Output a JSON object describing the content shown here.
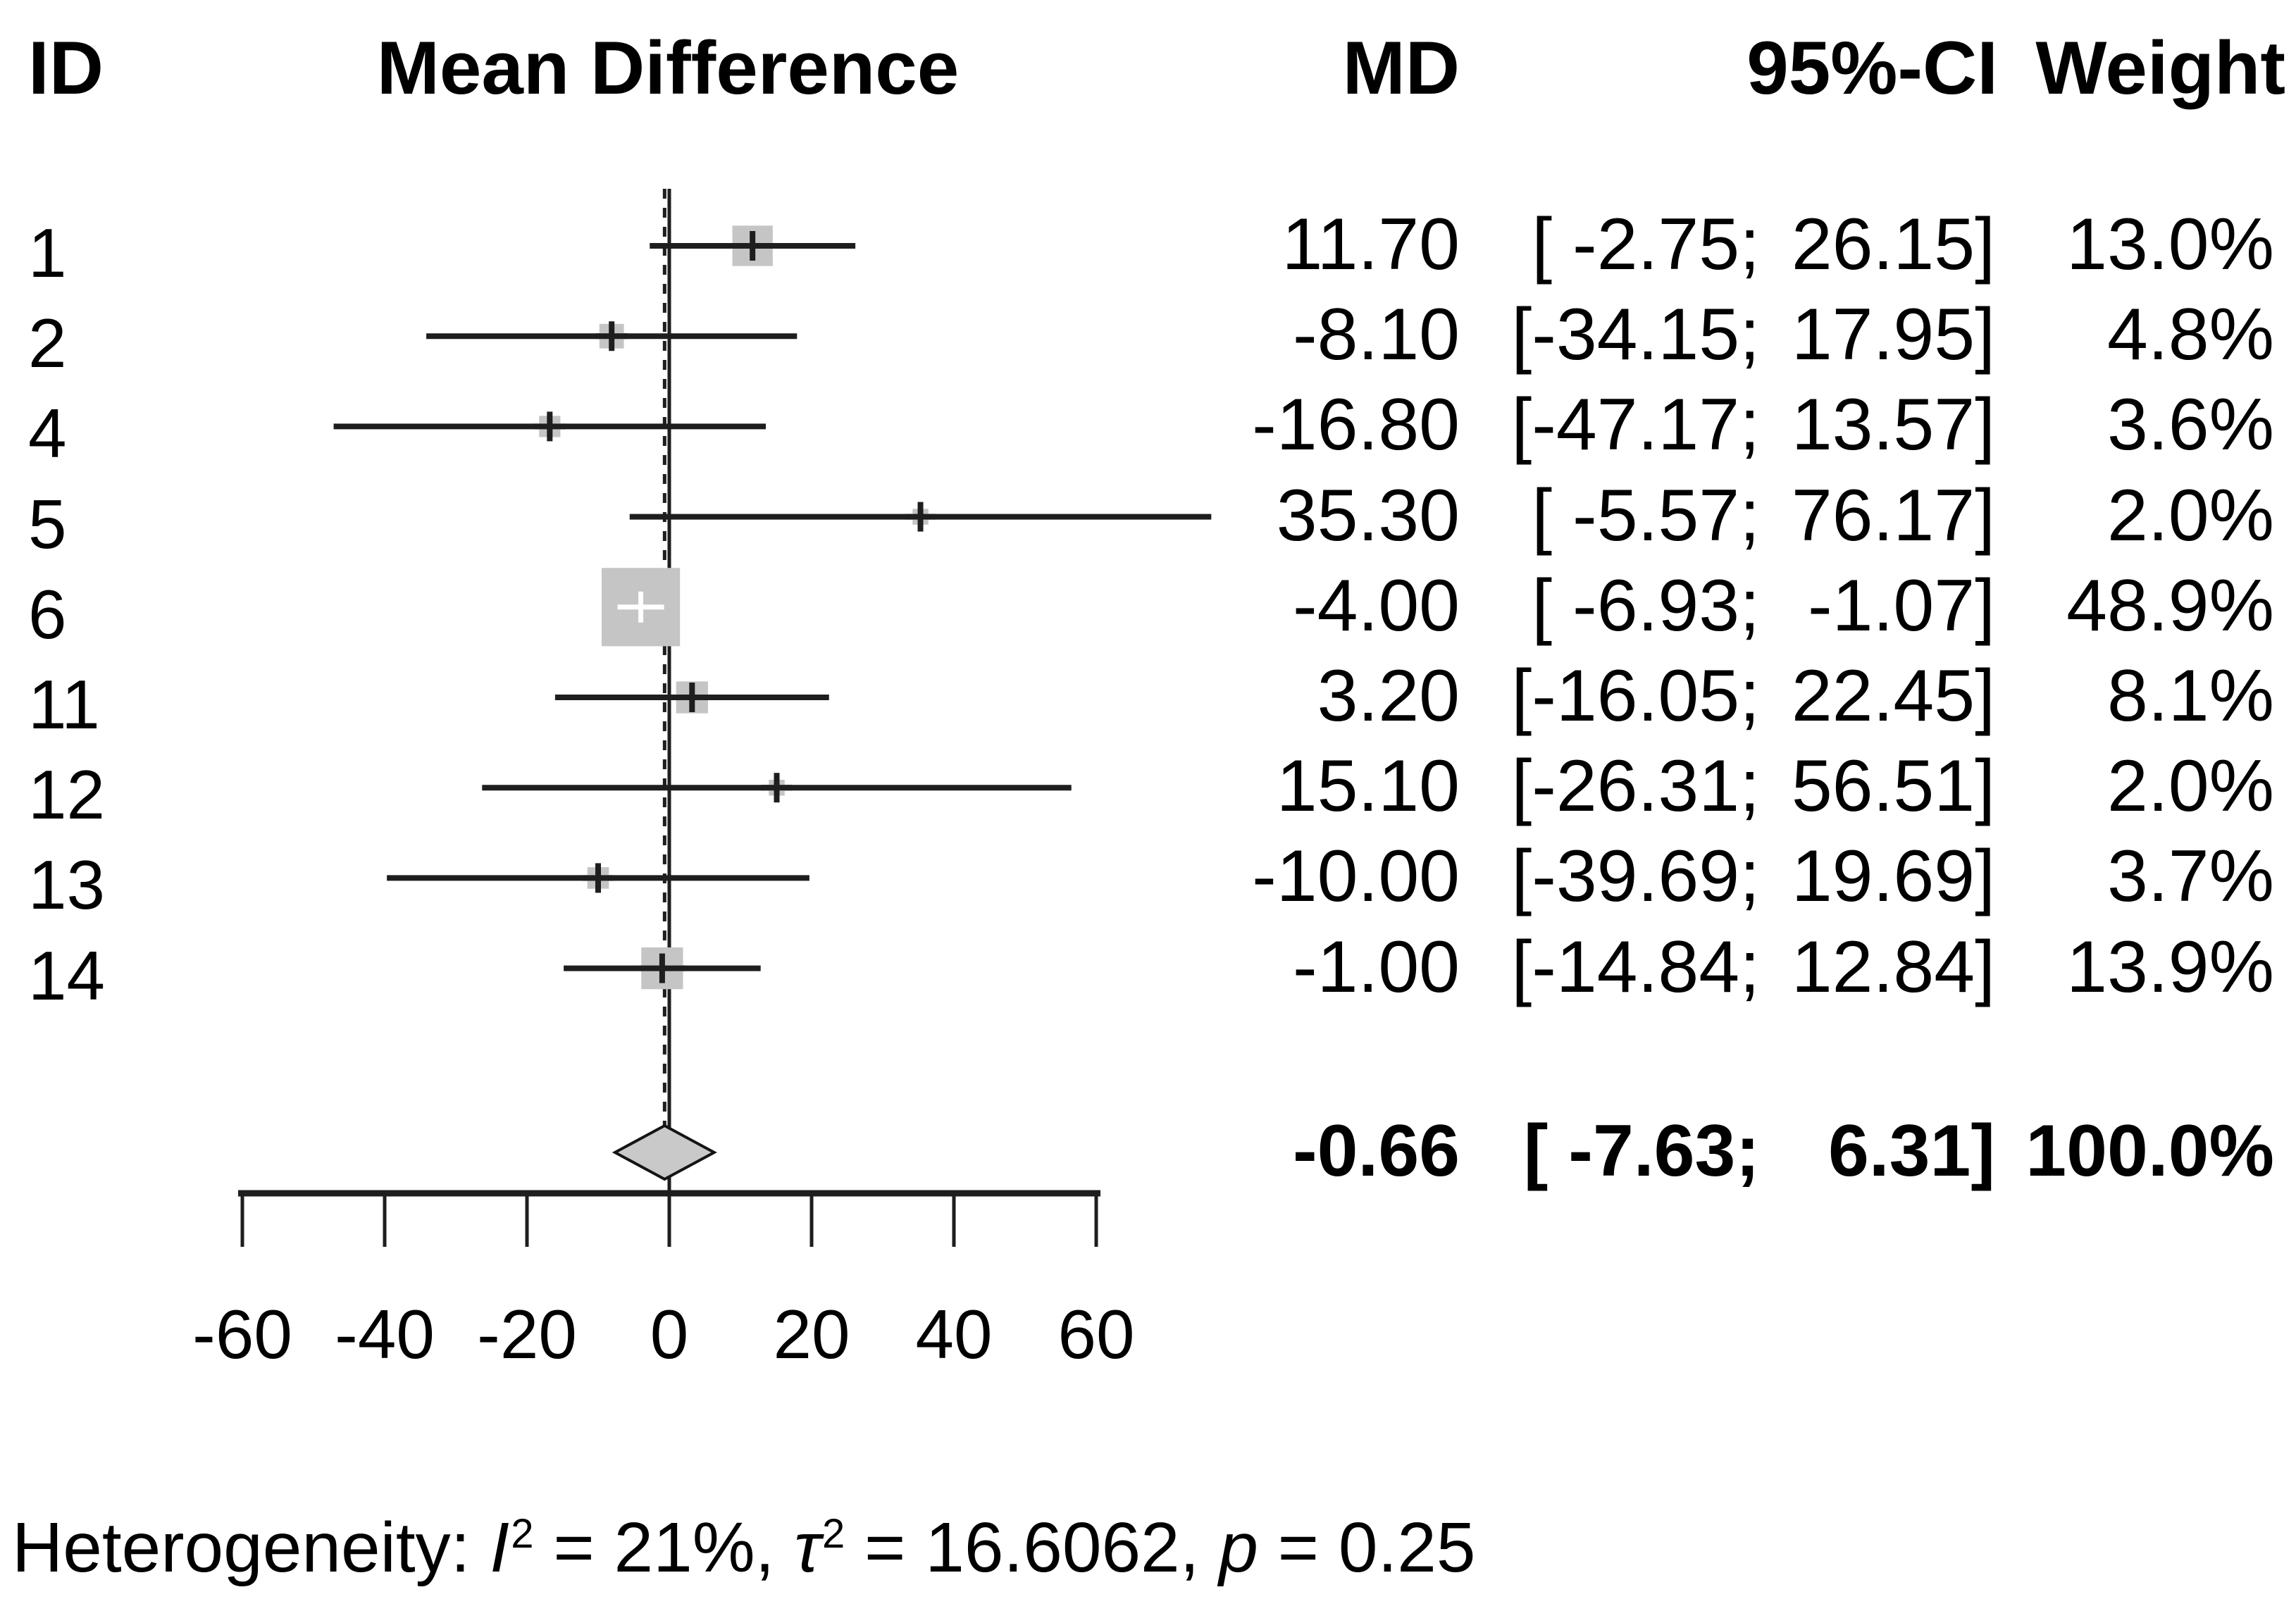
{
  "header": {
    "id": "ID",
    "plot": "Mean Difference",
    "md": "MD",
    "ci": "95%-CI",
    "weight": "Weight"
  },
  "chart_data": {
    "type": "forest",
    "effect_measure": "Mean Difference",
    "studies": [
      {
        "id": "1",
        "md": 11.7,
        "ci_lower": -2.75,
        "ci_upper": 26.15,
        "weight_pct": 13.0,
        "md_label": "11.70",
        "ci_lower_label": " -2.75",
        "ci_upper_label": "26.15",
        "weight_label": "13.0%"
      },
      {
        "id": "2",
        "md": -8.1,
        "ci_lower": -34.15,
        "ci_upper": 17.95,
        "weight_pct": 4.8,
        "md_label": "-8.10",
        "ci_lower_label": "-34.15",
        "ci_upper_label": "17.95",
        "weight_label": "4.8%"
      },
      {
        "id": "4",
        "md": -16.8,
        "ci_lower": -47.17,
        "ci_upper": 13.57,
        "weight_pct": 3.6,
        "md_label": "-16.80",
        "ci_lower_label": "-47.17",
        "ci_upper_label": "13.57",
        "weight_label": "3.6%"
      },
      {
        "id": "5",
        "md": 35.3,
        "ci_lower": -5.57,
        "ci_upper": 76.17,
        "weight_pct": 2.0,
        "md_label": "35.30",
        "ci_lower_label": " -5.57",
        "ci_upper_label": "76.17",
        "weight_label": "2.0%"
      },
      {
        "id": "6",
        "md": -4.0,
        "ci_lower": -6.93,
        "ci_upper": -1.07,
        "weight_pct": 48.9,
        "md_label": "-4.00",
        "ci_lower_label": " -6.93",
        "ci_upper_label": "-1.07",
        "weight_label": "48.9%"
      },
      {
        "id": "11",
        "md": 3.2,
        "ci_lower": -16.05,
        "ci_upper": 22.45,
        "weight_pct": 8.1,
        "md_label": "3.20",
        "ci_lower_label": "-16.05",
        "ci_upper_label": "22.45",
        "weight_label": "8.1%"
      },
      {
        "id": "12",
        "md": 15.1,
        "ci_lower": -26.31,
        "ci_upper": 56.51,
        "weight_pct": 2.0,
        "md_label": "15.10",
        "ci_lower_label": "-26.31",
        "ci_upper_label": "56.51",
        "weight_label": "2.0%"
      },
      {
        "id": "13",
        "md": -10.0,
        "ci_lower": -39.69,
        "ci_upper": 19.69,
        "weight_pct": 3.7,
        "md_label": "-10.00",
        "ci_lower_label": "-39.69",
        "ci_upper_label": "19.69",
        "weight_label": "3.7%"
      },
      {
        "id": "14",
        "md": -1.0,
        "ci_lower": -14.84,
        "ci_upper": 12.84,
        "weight_pct": 13.9,
        "md_label": "-1.00",
        "ci_lower_label": "-14.84",
        "ci_upper_label": "12.84",
        "weight_label": "13.9%"
      }
    ],
    "summary": {
      "md": -0.66,
      "ci_lower": -7.63,
      "ci_upper": 6.31,
      "weight_pct": 100.0,
      "md_label": "-0.66",
      "ci_lower_label": " -7.63",
      "ci_upper_label": " 6.31",
      "weight_label": "100.0%"
    },
    "axis": {
      "min": -60,
      "max": 60,
      "ref_value": 0,
      "tick_values": [
        -60,
        -40,
        -20,
        0,
        20,
        40,
        60
      ],
      "tick_labels": [
        "-60",
        "-40",
        "-20",
        "0",
        "20",
        "40",
        "60"
      ]
    },
    "heterogeneity": {
      "prefix": "Heterogeneity: ",
      "i2_symbol": "I",
      "i2_sup": "2",
      "i2_rest": " = 21%, ",
      "tau2_symbol": "τ",
      "tau2_sup": "2",
      "tau2_rest": " = 16.6062, ",
      "p_symbol": "p",
      "p_rest": " = 0.25"
    },
    "colors": {
      "ci_line": "#1e1e1e",
      "axis": "#1e1e1e",
      "square": "#c5c5c5",
      "big_square_plus": "#ffffff",
      "diamond_fill": "#c9c9c9",
      "diamond_stroke": "#141414",
      "text": "#000000"
    }
  }
}
